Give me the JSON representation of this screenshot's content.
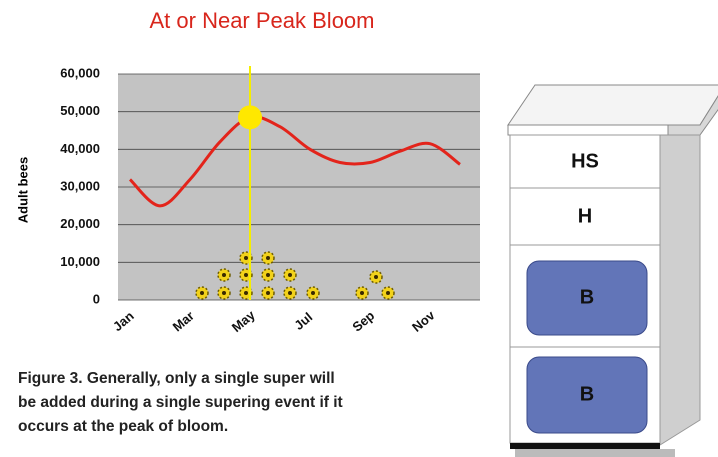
{
  "chart_data": {
    "type": "line",
    "title": "At or Near Peak Bloom",
    "y_label": "Adult bees",
    "categories": [
      "Jan",
      null,
      "Mar",
      null,
      "May",
      null,
      "Jul",
      null,
      "Sep",
      null,
      "Nov",
      null
    ],
    "series": [
      {
        "name": "Adult bees",
        "color": "#e3241b",
        "values": [
          32000,
          25000,
          32000,
          42000,
          48500,
          46000,
          40000,
          36500,
          36500,
          39500,
          41500,
          36000
        ]
      }
    ],
    "ylim": [
      0,
      60000
    ],
    "yticks": [
      0,
      {
        "value": 10000,
        "label": "10,000"
      },
      {
        "value": 20000,
        "label": "20,000"
      },
      {
        "value": 30000,
        "label": "30,000"
      },
      {
        "value": 40000,
        "label": "40,000"
      },
      {
        "value": 50000,
        "label": "50,000"
      },
      {
        "value": 60000,
        "label": "60,000"
      }
    ],
    "grid": true
  },
  "caption": [
    "Figure 3. Generally, only a single super will",
    "be added during a single supering event if it",
    "occurs at the peak of bloom."
  ],
  "hive": [
    "HS",
    "H",
    "B",
    "B"
  ]
}
